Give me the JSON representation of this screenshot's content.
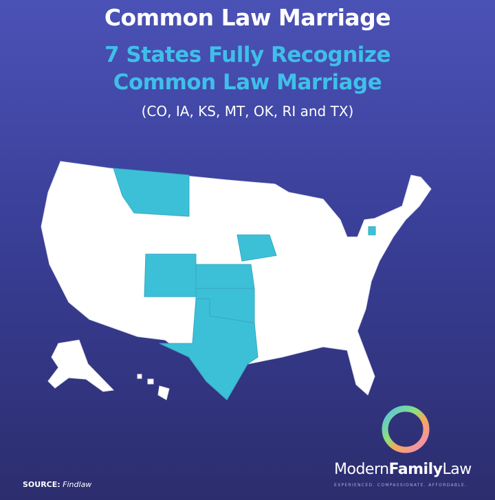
{
  "title": "Common Law Marriage",
  "subtitle_line1": "7 States Fully Recognize",
  "subtitle_line2": "Common Law Marriage",
  "states_note": "(CO, IA, KS, MT, OK, RI and TX)",
  "map": {
    "highlighted_states": [
      "CO",
      "IA",
      "KS",
      "MT",
      "OK",
      "RI",
      "TX"
    ],
    "highlight_color": "#3cc0d8",
    "base_color": "#ffffff"
  },
  "source": {
    "label": "SOURCE:",
    "value": "Findlaw"
  },
  "brand": {
    "part1": "Modern",
    "part2": "Family",
    "part3": "Law",
    "tagline": "EXPERIENCED. COMPASSIONATE. AFFORDABLE."
  }
}
